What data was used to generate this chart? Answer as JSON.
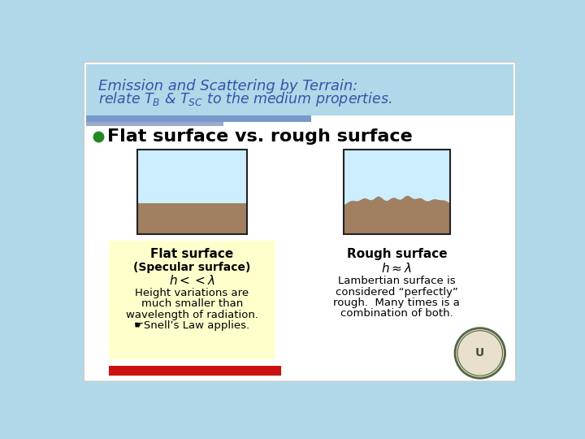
{
  "bg_color": "#b0d8e8",
  "slide_bg": "#ffffff",
  "title_line1": "Emission and Scattering by Terrain:",
  "title_line2": "relate $T_B$ & $T_{SC}$ to the medium properties.",
  "title_color": "#3355aa",
  "title_fontsize": 13,
  "bullet_text": "Flat surface vs. rough surface",
  "bullet_color": "#228822",
  "bullet_fontsize": 16,
  "flat_box_bg": "#ffffcc",
  "sky_color": "#cceeff",
  "ground_color": "#a08060",
  "ground_color_dark": "#8a6e50",
  "box_edge_color": "#222222",
  "blue_bar1_color": "#7799cc",
  "blue_bar2_color": "#99aacc",
  "red_bar_color": "#cc1111",
  "flat_lines": [
    [
      "Flat surface",
      11,
      "bold",
      false
    ],
    [
      "(Specular surface)",
      10,
      "bold",
      false
    ],
    [
      "$h<<\\lambda$",
      11,
      "bold",
      true
    ],
    [
      "Height variations are",
      9.5,
      "normal",
      false
    ],
    [
      "much smaller than",
      9.5,
      "normal",
      false
    ],
    [
      "wavelength of radiation.",
      9.5,
      "normal",
      false
    ],
    [
      "☛Snell’s Law applies.",
      9.5,
      "normal",
      false
    ]
  ],
  "rough_lines": [
    [
      "Rough surface",
      11,
      "bold",
      false
    ],
    [
      "$h\\approx\\lambda$",
      11,
      "bold",
      true
    ],
    [
      "Lambertian surface is",
      9.5,
      "normal",
      false
    ],
    [
      "considered “perfectly”",
      9.5,
      "normal",
      false
    ],
    [
      "rough.  Many times is a",
      9.5,
      "normal",
      false
    ],
    [
      "combination of both.",
      9.5,
      "normal",
      false
    ]
  ]
}
